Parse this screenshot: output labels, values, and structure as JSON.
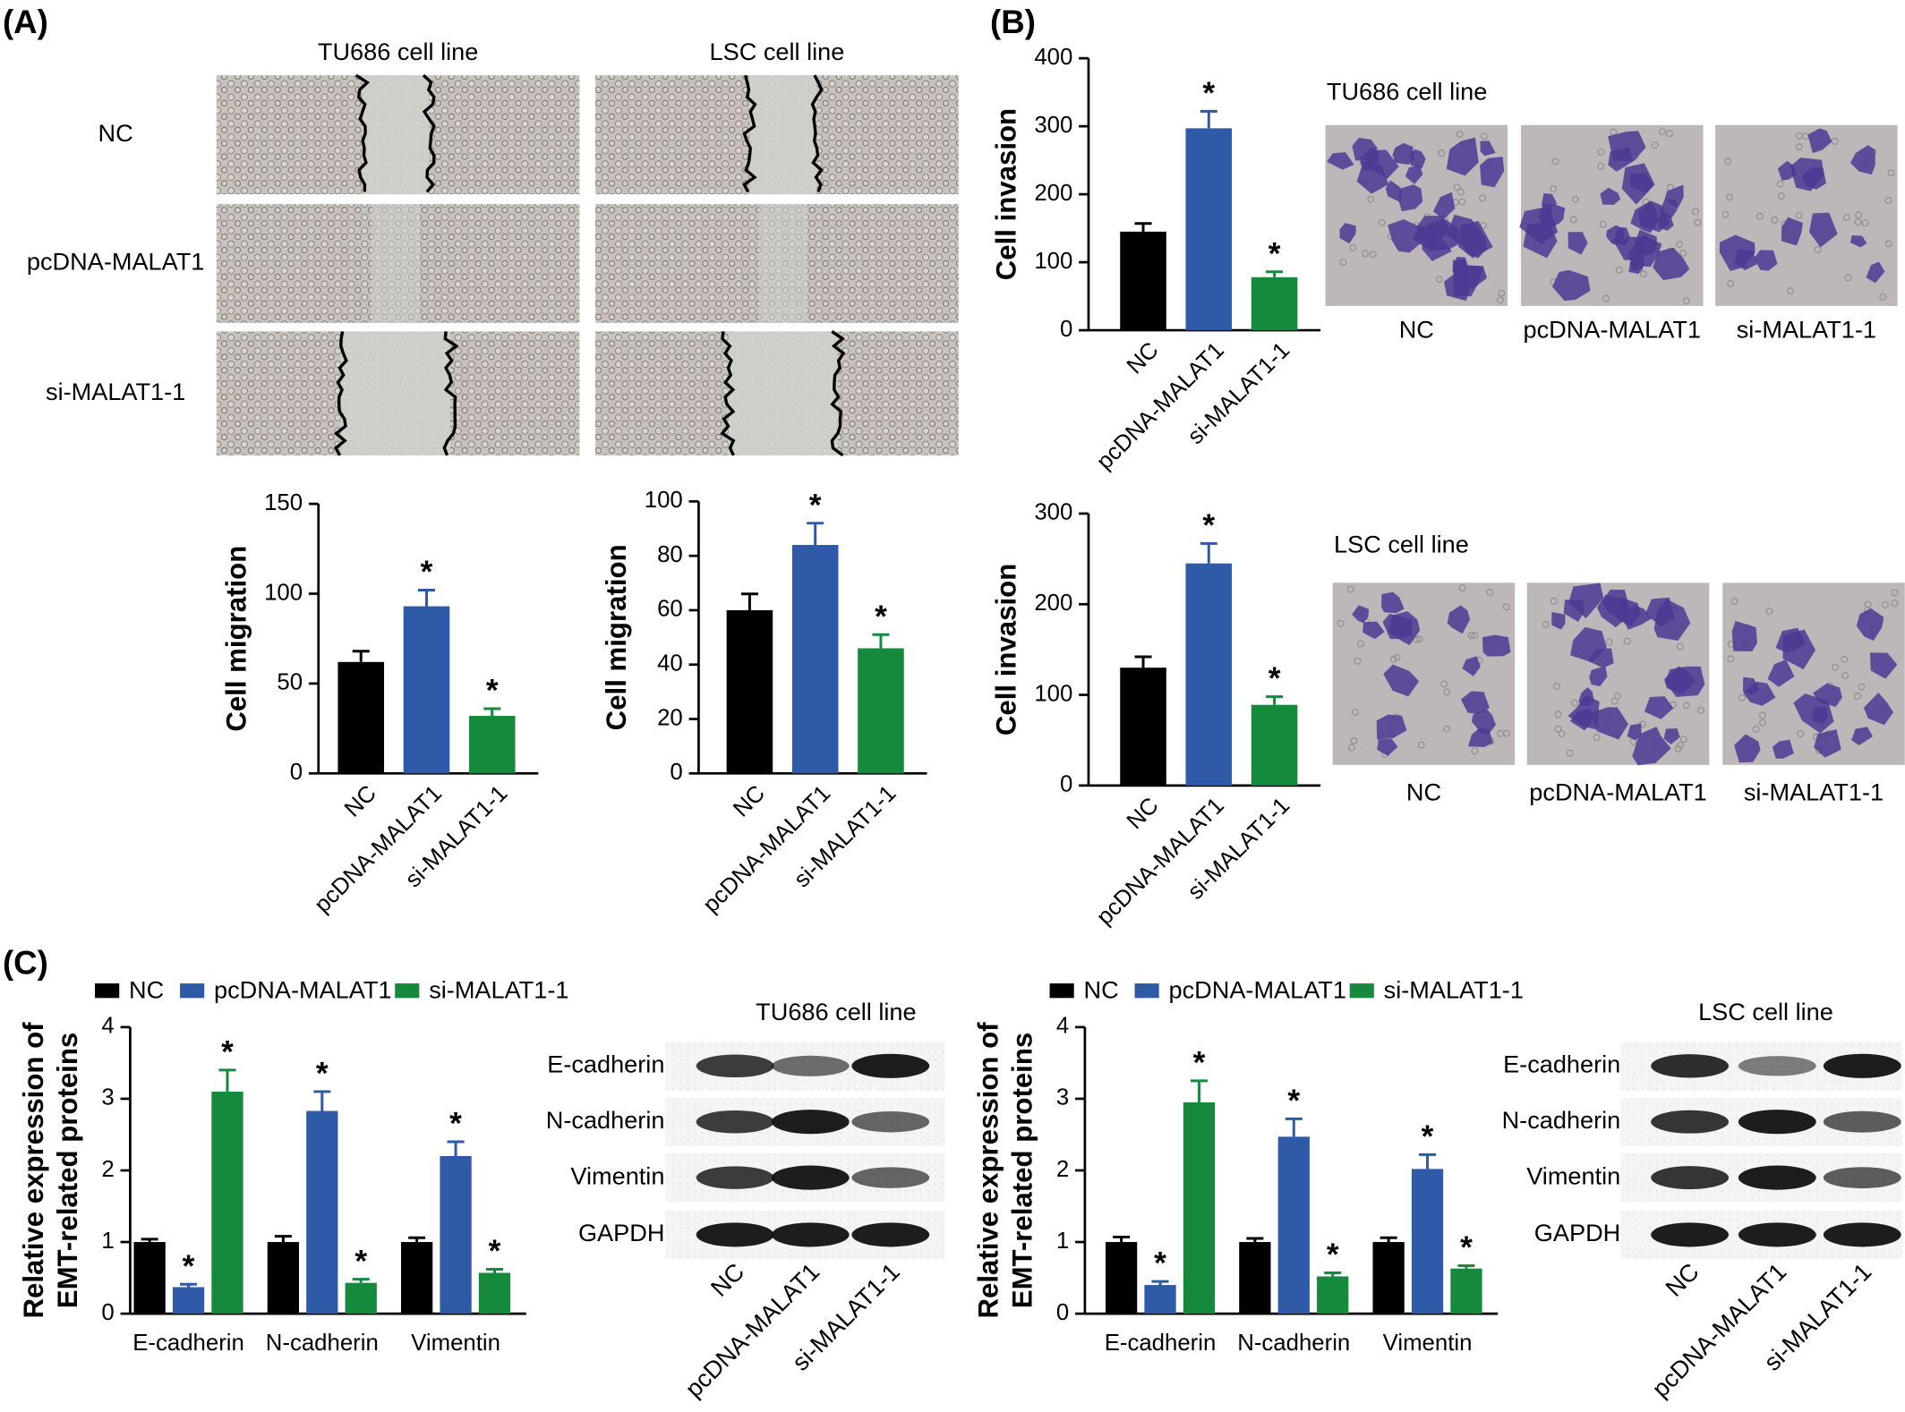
{
  "panel_labels": [
    "(A)",
    "(B)",
    "(C)"
  ],
  "migration_images": {
    "columns": [
      "TU686 cell line",
      "LSC cell line"
    ],
    "rows": [
      "NC",
      "pcDNA-MALAT1",
      "si-MALAT1-1"
    ]
  },
  "invasion_images": [
    {
      "title": "TU686 cell line",
      "labels": [
        "NC",
        "pcDNA-MALAT1",
        "si-MALAT1-1"
      ]
    },
    {
      "title": "LSC cell line",
      "labels": [
        "NC",
        "pcDNA-MALAT1",
        "si-MALAT1-1"
      ]
    }
  ],
  "blots": [
    {
      "title": "TU686 cell line",
      "proteins": [
        "E-cadherin",
        "N-cadherin",
        "Vimentin",
        "GAPDH"
      ],
      "lanes": [
        "NC",
        "pcDNA-MALAT1",
        "si-MALAT1-1"
      ]
    },
    {
      "title": "LSC cell line",
      "proteins": [
        "E-cadherin",
        "N-cadherin",
        "Vimentin",
        "GAPDH"
      ],
      "lanes": [
        "NC",
        "pcDNA-MALAT1",
        "si-MALAT1-1"
      ]
    }
  ],
  "chart_data": [
    {
      "type": "bar",
      "ylabel": "Cell migration",
      "categories": [
        "NC",
        "pcDNA-MALAT1",
        "si-MALAT1-1"
      ],
      "values": [
        62,
        93,
        32
      ],
      "errors": [
        6,
        9,
        4
      ],
      "significance": [
        null,
        "*",
        "*"
      ],
      "colors": [
        "#000000",
        "#2f5aa8",
        "#168a3c"
      ],
      "ylim": [
        0,
        150
      ],
      "yticks": [
        0,
        50,
        100,
        150
      ]
    },
    {
      "type": "bar",
      "ylabel": "Cell migration",
      "categories": [
        "NC",
        "pcDNA-MALAT1",
        "si-MALAT1-1"
      ],
      "values": [
        60,
        84,
        46
      ],
      "errors": [
        6,
        8,
        5
      ],
      "significance": [
        null,
        "*",
        "*"
      ],
      "colors": [
        "#000000",
        "#2f5aa8",
        "#168a3c"
      ],
      "ylim": [
        0,
        100
      ],
      "yticks": [
        0,
        20,
        40,
        60,
        80,
        100
      ]
    },
    {
      "type": "bar",
      "ylabel": "Cell invasion",
      "categories": [
        "NC",
        "pcDNA-MALAT1",
        "si-MALAT1-1"
      ],
      "values": [
        145,
        297,
        78
      ],
      "errors": [
        12,
        25,
        8
      ],
      "significance": [
        null,
        "*",
        "*"
      ],
      "colors": [
        "#000000",
        "#2f5aa8",
        "#168a3c"
      ],
      "ylim": [
        0,
        400
      ],
      "yticks": [
        0,
        100,
        200,
        300,
        400
      ]
    },
    {
      "type": "bar",
      "ylabel": "Cell invasion",
      "categories": [
        "NC",
        "pcDNA-MALAT1",
        "si-MALAT1-1"
      ],
      "values": [
        130,
        245,
        89
      ],
      "errors": [
        12,
        22,
        9
      ],
      "significance": [
        null,
        "*",
        "*"
      ],
      "colors": [
        "#000000",
        "#2f5aa8",
        "#168a3c"
      ],
      "ylim": [
        0,
        300
      ],
      "yticks": [
        0,
        100,
        200,
        300
      ]
    },
    {
      "type": "bar",
      "ylabel": [
        "Relative expression of",
        "EMT-related proteins"
      ],
      "categories": [
        "E-cadherin",
        "N-cadherin",
        "Vimentin"
      ],
      "series": [
        {
          "name": "NC",
          "color": "#000000",
          "values": [
            1,
            1,
            1
          ],
          "errors": [
            0.04,
            0.08,
            0.06
          ],
          "significance": [
            null,
            null,
            null
          ]
        },
        {
          "name": "pcDNA-MALAT1",
          "color": "#2f5aa8",
          "values": [
            0.37,
            2.83,
            2.2
          ],
          "errors": [
            0.04,
            0.27,
            0.2
          ],
          "significance": [
            "*",
            "*",
            "*"
          ]
        },
        {
          "name": "si-MALAT1-1",
          "color": "#168a3c",
          "values": [
            3.1,
            0.43,
            0.57
          ],
          "errors": [
            0.3,
            0.05,
            0.05
          ],
          "significance": [
            "*",
            "*",
            "*"
          ]
        }
      ],
      "ylim": [
        0,
        4
      ],
      "yticks": [
        0,
        1,
        2,
        3,
        4
      ]
    },
    {
      "type": "bar",
      "ylabel": [
        "Relative expression of",
        "EMT-related proteins"
      ],
      "categories": [
        "E-cadherin",
        "N-cadherin",
        "Vimentin"
      ],
      "series": [
        {
          "name": "NC",
          "color": "#000000",
          "values": [
            1,
            1,
            1
          ],
          "errors": [
            0.07,
            0.05,
            0.06
          ],
          "significance": [
            null,
            null,
            null
          ]
        },
        {
          "name": "pcDNA-MALAT1",
          "color": "#2f5aa8",
          "values": [
            0.4,
            2.47,
            2.02
          ],
          "errors": [
            0.05,
            0.25,
            0.2
          ],
          "significance": [
            "*",
            "*",
            "*"
          ]
        },
        {
          "name": "si-MALAT1-1",
          "color": "#168a3c",
          "values": [
            2.95,
            0.52,
            0.63
          ],
          "errors": [
            0.3,
            0.05,
            0.04
          ],
          "significance": [
            "*",
            "*",
            "*"
          ]
        }
      ],
      "ylim": [
        0,
        4
      ],
      "yticks": [
        0,
        1,
        2,
        3,
        4
      ]
    }
  ]
}
